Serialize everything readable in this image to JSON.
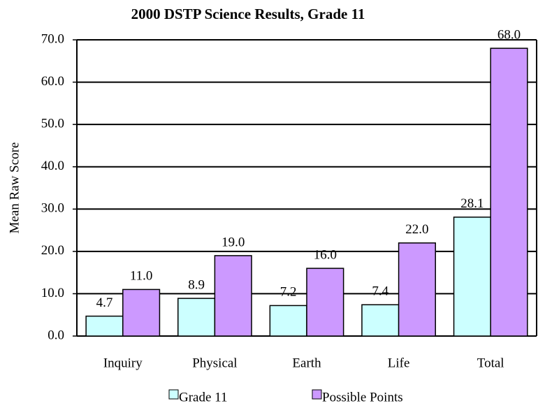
{
  "chart_data": {
    "type": "bar",
    "title": "2000 DSTP Science Results, Grade 11",
    "y_label": "Mean Raw Score",
    "categories": [
      "Inquiry",
      "Physical",
      "Earth",
      "Life",
      "Total"
    ],
    "series": [
      {
        "name": "Grade 11",
        "color": "#ccffff",
        "values": [
          4.7,
          8.9,
          7.2,
          7.4,
          28.1
        ],
        "value_labels": [
          "4.7",
          "8.9",
          "7.2",
          "7.4",
          "28.1"
        ]
      },
      {
        "name": "Possible Points",
        "color": "#cc99ff",
        "values": [
          11,
          19,
          16,
          22,
          68
        ],
        "value_labels": [
          "11.0",
          "19.0",
          "16.0",
          "22.0",
          "68.0"
        ]
      }
    ],
    "ylim": [
      0,
      70
    ],
    "yticks": [
      {
        "value": 0,
        "label": "0.0"
      },
      {
        "value": 10,
        "label": "10.0"
      },
      {
        "value": 20,
        "label": "20.0"
      },
      {
        "value": 30,
        "label": "30.0"
      },
      {
        "value": 40,
        "label": "40.0"
      },
      {
        "value": 50,
        "label": "50.0"
      },
      {
        "value": 60,
        "label": "60.0"
      },
      {
        "value": 70,
        "label": "70.0"
      }
    ],
    "grid": true
  }
}
